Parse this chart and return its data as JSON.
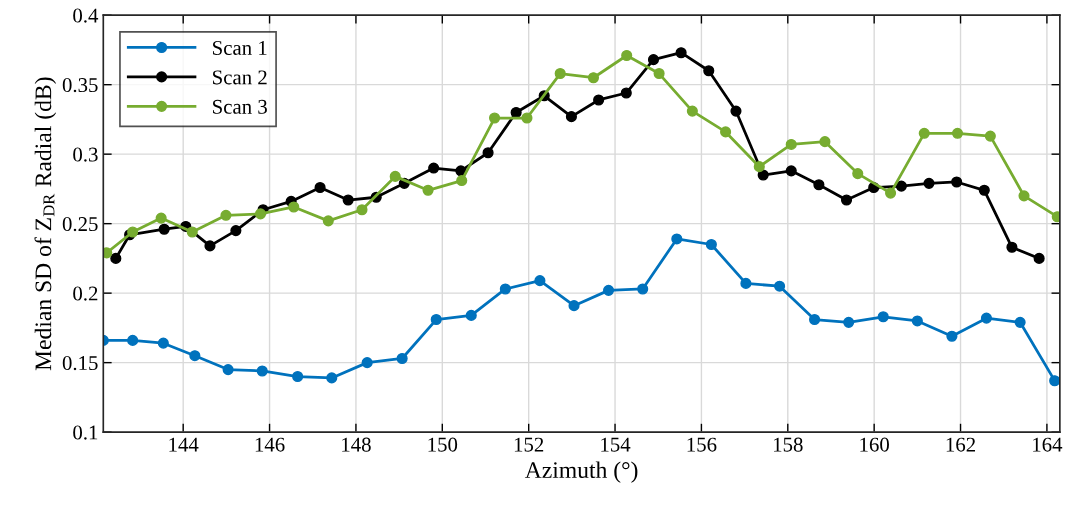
{
  "chart_data": {
    "type": "line",
    "xlabel": "Azimuth (°)",
    "ylabel": "Median SD of Z$_{DR}$ Radial (dB)",
    "xlim": [
      142.15,
      164.3
    ],
    "xticks": [
      144,
      146,
      148,
      150,
      152,
      154,
      156,
      158,
      160,
      162,
      164
    ],
    "ylim": [
      0.1,
      0.4
    ],
    "yticks": [
      0.1,
      0.15,
      0.2,
      0.25,
      0.3,
      0.35,
      0.4
    ],
    "grid": true,
    "legend": "top left",
    "marker": "circle",
    "line_style": "solid",
    "series": [
      {
        "name": "Scan 1",
        "color": "#0072bd",
        "x": [
          142.15,
          142.83,
          143.54,
          144.27,
          145.04,
          145.83,
          146.65,
          147.44,
          148.26,
          149.07,
          149.86,
          150.67,
          151.46,
          152.26,
          153.05,
          153.85,
          154.64,
          155.43,
          156.23,
          157.03,
          157.81,
          158.62,
          159.41,
          160.21,
          161.0,
          161.8,
          162.6,
          163.38,
          164.18
        ],
        "values": [
          0.166,
          0.166,
          0.164,
          0.155,
          0.145,
          0.144,
          0.14,
          0.139,
          0.15,
          0.153,
          0.181,
          0.184,
          0.203,
          0.209,
          0.191,
          0.202,
          0.203,
          0.239,
          0.235,
          0.207,
          0.205,
          0.181,
          0.179,
          0.183,
          0.18,
          0.169,
          0.182,
          0.179,
          0.137
        ]
      },
      {
        "name": "Scan 2",
        "color": "#000000",
        "x": [
          142.44,
          142.76,
          143.56,
          144.06,
          144.62,
          145.22,
          145.85,
          146.5,
          147.17,
          147.82,
          148.47,
          149.12,
          149.8,
          150.43,
          151.06,
          151.71,
          152.36,
          152.99,
          153.62,
          154.26,
          154.89,
          155.53,
          156.17,
          156.8,
          157.43,
          158.08,
          158.72,
          159.36,
          159.99,
          160.63,
          161.27,
          161.91,
          162.55,
          163.19,
          163.82
        ],
        "values": [
          0.225,
          0.242,
          0.246,
          0.248,
          0.234,
          0.245,
          0.26,
          0.266,
          0.276,
          0.267,
          0.269,
          0.279,
          0.29,
          0.288,
          0.301,
          0.33,
          0.342,
          0.327,
          0.339,
          0.344,
          0.368,
          0.373,
          0.36,
          0.331,
          0.285,
          0.288,
          0.278,
          0.267,
          0.276,
          0.277,
          0.279,
          0.28,
          0.274,
          0.233,
          0.225
        ]
      },
      {
        "name": "Scan 3",
        "color": "#77ac30",
        "x": [
          142.23,
          142.83,
          143.49,
          144.21,
          144.99,
          145.79,
          146.56,
          147.36,
          148.14,
          148.91,
          149.67,
          150.45,
          151.21,
          151.96,
          152.73,
          153.5,
          154.27,
          155.02,
          155.79,
          156.56,
          157.34,
          158.08,
          158.86,
          159.62,
          160.38,
          161.16,
          161.93,
          162.69,
          163.47,
          164.24
        ],
        "values": [
          0.229,
          0.244,
          0.254,
          0.244,
          0.256,
          0.257,
          0.262,
          0.252,
          0.26,
          0.284,
          0.274,
          0.281,
          0.326,
          0.326,
          0.358,
          0.355,
          0.371,
          0.358,
          0.331,
          0.316,
          0.291,
          0.307,
          0.309,
          0.286,
          0.272,
          0.315,
          0.315,
          0.313,
          0.27,
          0.255
        ]
      }
    ]
  }
}
